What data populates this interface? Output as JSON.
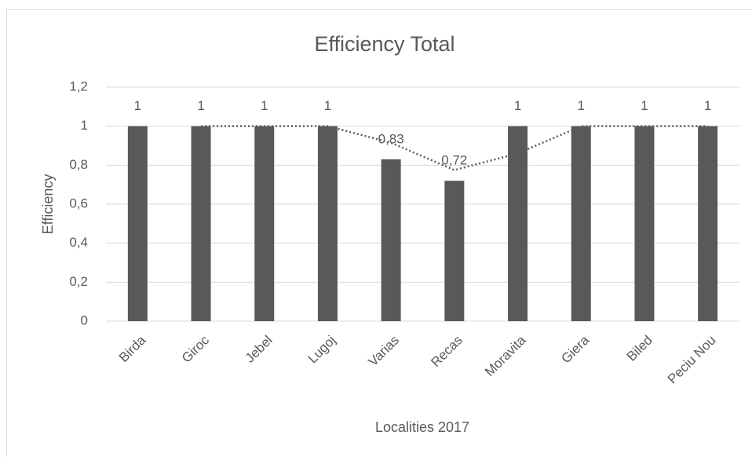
{
  "chart_data": {
    "type": "bar",
    "title": "Efficiency Total",
    "x_label": "Localities 2017",
    "y_label": "Efficiency",
    "categories": [
      "Birda",
      "Giroc",
      "Jebel",
      "Lugoj",
      "Varias",
      "Recas",
      "Moravita",
      "Giera",
      "Biled",
      "Peciu Nou"
    ],
    "values": [
      1,
      1,
      1,
      1,
      0.83,
      0.72,
      1,
      1,
      1,
      1
    ],
    "value_labels": [
      "1",
      "1",
      "1",
      "1",
      "0,83",
      "0,72",
      "1",
      "1",
      "1",
      "1"
    ],
    "color": "#595959",
    "trendline": {
      "values": [
        null,
        1,
        1,
        1,
        0.915,
        0.775,
        0.86,
        1,
        1,
        1
      ],
      "color": "#595959",
      "style": "dotted"
    },
    "ylim": [
      0,
      1.2
    ],
    "yticks": [
      0,
      {
        "value": 0.2,
        "label": "0,2"
      },
      {
        "value": 0.4,
        "label": "0,4"
      },
      {
        "value": 0.6,
        "label": "0,6"
      },
      {
        "value": 0.8,
        "label": "0,8"
      },
      1,
      {
        "value": 1.2,
        "label": "1,2"
      }
    ],
    "grid": true
  }
}
